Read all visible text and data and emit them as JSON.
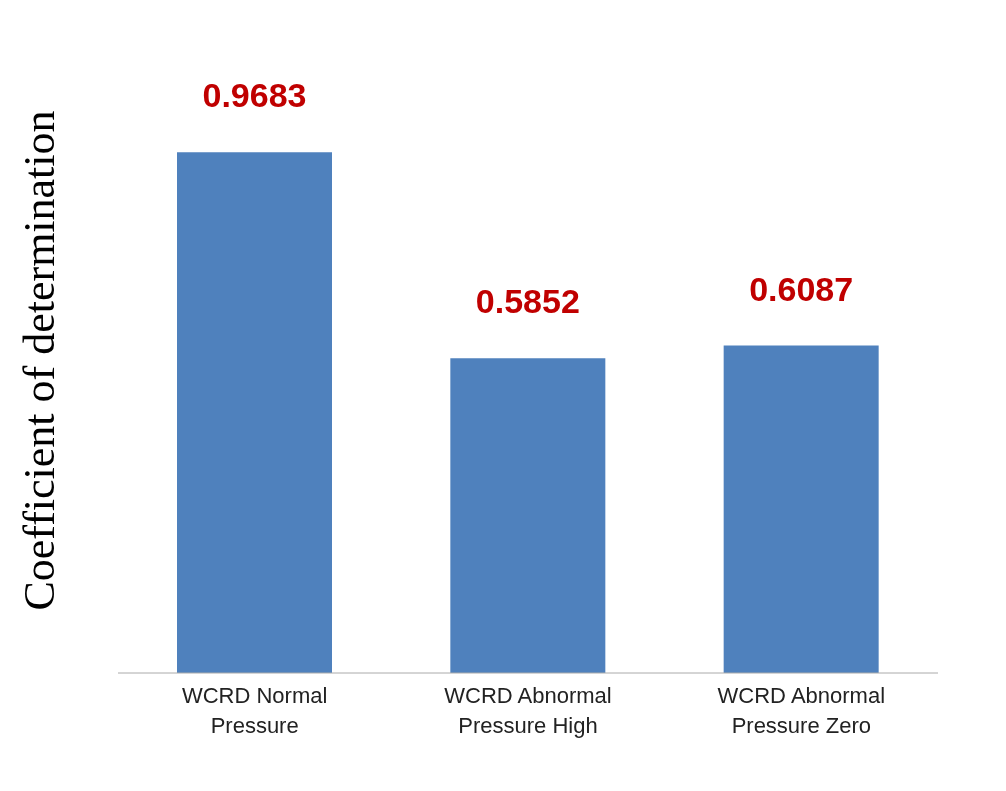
{
  "chart_data": {
    "type": "bar",
    "ylabel": "Coefficient of determination",
    "categories": [
      "WCRD Normal Pressure",
      "WCRD Abnormal Pressure High",
      "WCRD Abnormal Pressure Zero"
    ],
    "values": [
      0.9683,
      0.5852,
      0.6087
    ],
    "color": "#4f81bd",
    "data_labels": true,
    "grid": false
  }
}
